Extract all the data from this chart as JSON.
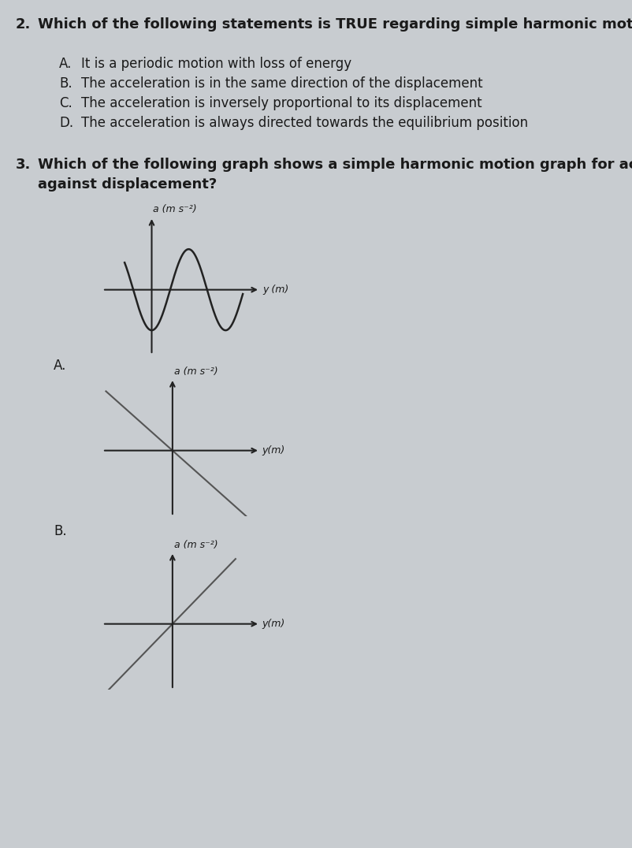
{
  "bg_color": "#c8ccd0",
  "q2_number": "2.",
  "q2_text": "Which of the following statements is TRUE regarding simple harmonic motion?",
  "q2_opts": [
    [
      "A.",
      "It is a periodic motion with loss of energy"
    ],
    [
      "B.",
      "The acceleration is in the same direction of the displacement"
    ],
    [
      "C.",
      "The acceleration is inversely proportional to its displacement"
    ],
    [
      "D.",
      "The acceleration is always directed towards the equilibrium position"
    ]
  ],
  "q3_number": "3.",
  "q3_line1": "Which of the following graph shows a simple harmonic motion graph for acceleration",
  "q3_line2": "against displacement?",
  "label_A": "A.",
  "label_B": "B.",
  "graph_A_xlabel": "y (m)",
  "graph_A_ylabel": "a (m s⁻²)",
  "graph_B_xlabel": "y(m)",
  "graph_B_ylabel": "a (m s⁻²)",
  "graph_C_xlabel": "y(m)",
  "graph_C_ylabel": "a (m s⁻²)",
  "text_color": "#1a1a1a",
  "line_color": "#222222",
  "font_size_q_num": 13,
  "font_size_q_text": 13,
  "font_size_opt_letter": 12,
  "font_size_opt_text": 12,
  "font_size_axis_label": 10,
  "font_size_graph_label": 12
}
